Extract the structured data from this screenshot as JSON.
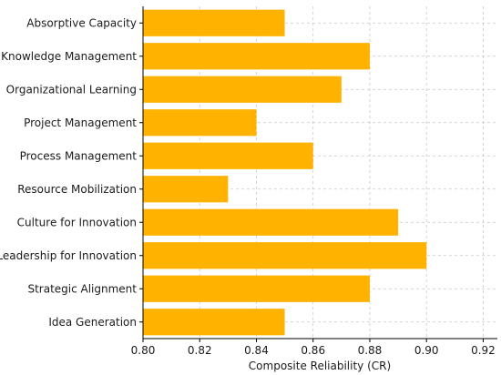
{
  "chart_data": {
    "type": "bar",
    "orientation": "horizontal",
    "title": "",
    "xlabel": "Composite Reliability (CR)",
    "ylabel": "",
    "categories": [
      "Absorptive Capacity",
      "Knowledge Management",
      "Organizational Learning",
      "Project Management",
      "Process Management",
      "Resource Mobilization",
      "Culture for Innovation",
      "Leadership for Innovation",
      "Strategic Alignment",
      "Idea Generation"
    ],
    "values": [
      0.85,
      0.88,
      0.87,
      0.84,
      0.86,
      0.83,
      0.89,
      0.9,
      0.88,
      0.85
    ],
    "xlim": [
      0.8,
      0.925
    ],
    "xticks": [
      "0.80",
      "0.82",
      "0.84",
      "0.86",
      "0.88",
      "0.90",
      "0.92"
    ],
    "grid": true,
    "bar_color": "#FFB300",
    "grid_color": "#c8c8c8"
  }
}
